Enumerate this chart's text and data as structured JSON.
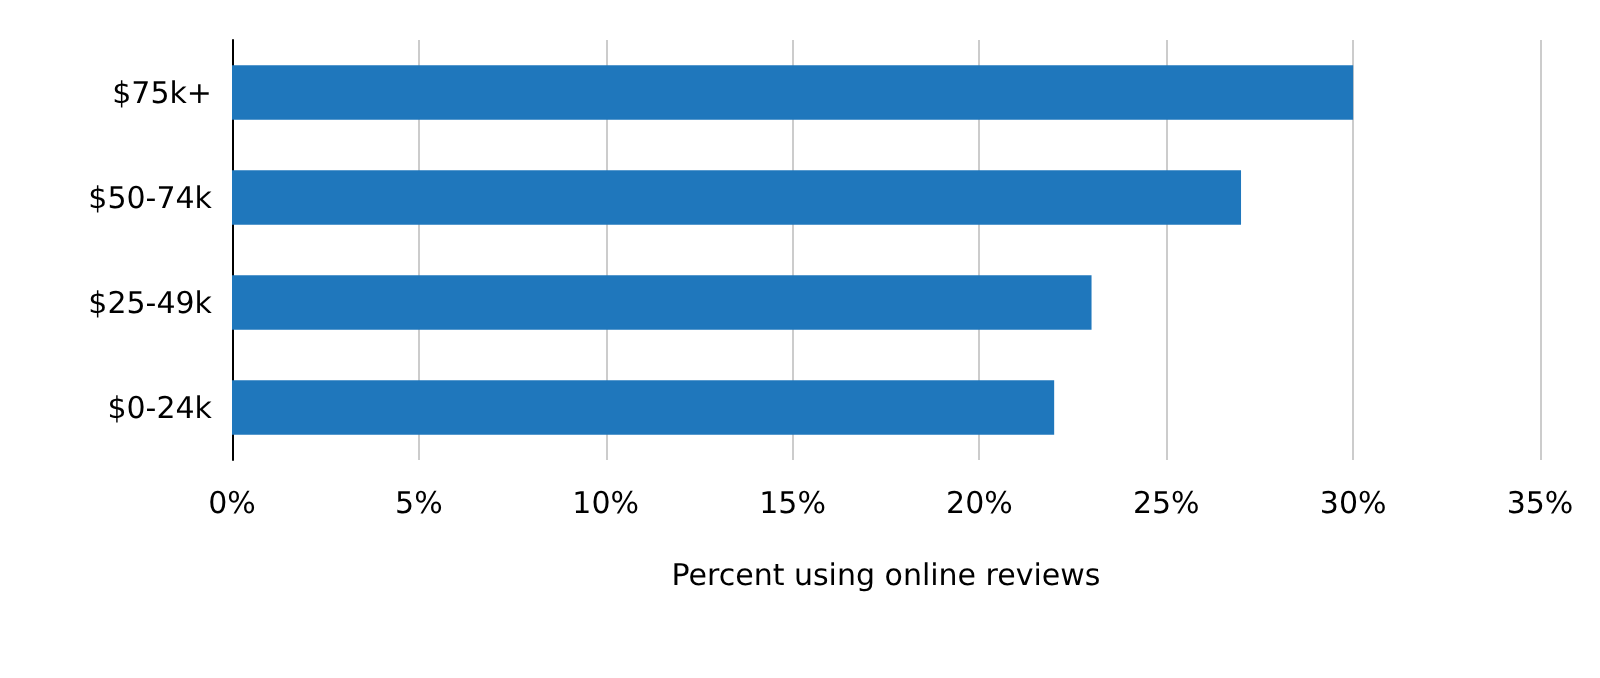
{
  "chart_data": {
    "type": "bar",
    "orientation": "horizontal",
    "xlabel": "Percent using online reviews",
    "categories": [
      "$75k+",
      "$50-74k",
      "$25-49k",
      "$0-24k"
    ],
    "values": [
      30,
      27,
      23,
      22
    ],
    "color": "#1f77bc",
    "xlim": [
      0,
      35
    ],
    "xticks": [
      {
        "value": 0,
        "label": "0%"
      },
      {
        "value": 5,
        "label": "5%"
      },
      {
        "value": 10,
        "label": "10%"
      },
      {
        "value": 15,
        "label": "15%"
      },
      {
        "value": 20,
        "label": "20%"
      },
      {
        "value": 25,
        "label": "25%"
      },
      {
        "value": 30,
        "label": "30%"
      },
      {
        "value": 35,
        "label": "35%"
      }
    ],
    "grid": "x"
  }
}
